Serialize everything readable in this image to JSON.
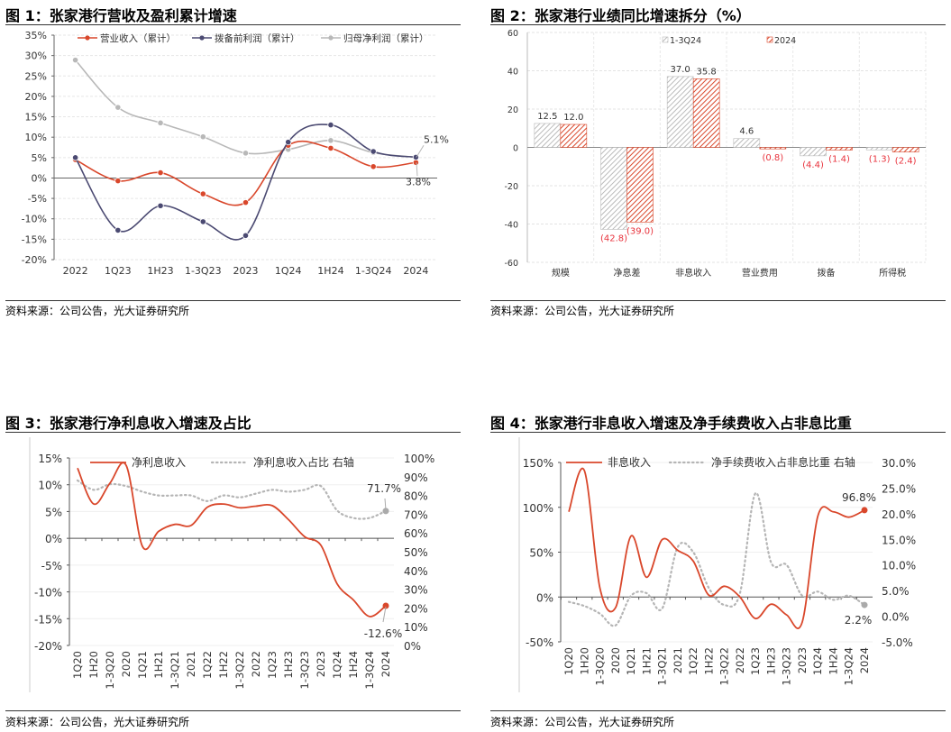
{
  "panels": [
    {
      "title": "图 1：张家港行营收及盈利累计增速",
      "source": "资料来源：公司公告，光大证券研究所"
    },
    {
      "title": "图 2：张家港行业绩同比增速拆分（%）",
      "source": "资料来源：公司公告，光大证券研究所"
    },
    {
      "title": "图 3：张家港行净利息收入增速及占比",
      "source": "资料来源：公司公告，光大证券研究所"
    },
    {
      "title": "图 4：张家港行非息收入增速及净手续费收入占非息比重",
      "source": "资料来源：公司公告，光大证券研究所"
    }
  ],
  "colors": {
    "red": "#d9472b",
    "navy": "#4b4a72",
    "gray": "#b8b8b8",
    "label_red": "#e8323c"
  },
  "chart_data": [
    {
      "type": "line",
      "title": "图 1：张家港行营收及盈利累计增速",
      "ylim": [
        -20,
        35
      ],
      "yticks": [
        "35%",
        "30%",
        "25%",
        "20%",
        "15%",
        "10%",
        "5%",
        "0%",
        "-5%",
        "-10%",
        "-15%",
        "-20%"
      ],
      "categories": [
        "2022",
        "1Q23",
        "1H23",
        "1-3Q23",
        "2023",
        "1Q24",
        "1H24",
        "1-3Q24",
        "2024"
      ],
      "series": [
        {
          "name": "营业收入（累计）",
          "values": [
            4.5,
            -0.7,
            1.3,
            -3.9,
            -6.0,
            8.0,
            7.3,
            2.8,
            3.8
          ]
        },
        {
          "name": "拨备前利润（累计）",
          "values": [
            5.0,
            -12.8,
            -6.8,
            -10.7,
            -14.1,
            8.8,
            13.0,
            6.5,
            5.1
          ]
        },
        {
          "name": "归母净利润（累计）",
          "values": [
            28.9,
            17.3,
            13.5,
            10.1,
            6.1,
            7.0,
            9.2,
            6.2,
            5.1
          ]
        }
      ],
      "annotations": [
        "5.1%",
        "3.8%"
      ],
      "legend": "top"
    },
    {
      "type": "bar",
      "title": "图 2：张家港行业绩同比增速拆分（%）",
      "ylim": [
        -60,
        60
      ],
      "yticks": [
        "60",
        "40",
        "20",
        "0",
        "-20",
        "-40",
        "-60"
      ],
      "categories": [
        "规模",
        "净息差",
        "非息收入",
        "营业费用",
        "拨备",
        "所得税"
      ],
      "series": [
        {
          "name": "1-3Q24",
          "values": [
            12.5,
            -42.8,
            37.0,
            4.6,
            -4.4,
            -1.3
          ],
          "labels": [
            "12.5",
            "(42.8)",
            "37.0",
            "4.6",
            "(4.4)",
            "(1.3)"
          ]
        },
        {
          "name": "2024",
          "values": [
            12.0,
            -39.0,
            35.8,
            -0.8,
            -1.4,
            -2.4
          ],
          "labels": [
            "12.0",
            "(39.0)",
            "35.8",
            "(0.8)",
            "(1.4)",
            "(2.4)"
          ]
        }
      ],
      "legend": "top"
    },
    {
      "type": "line",
      "title": "图 3：张家港行净利息收入增速及占比",
      "ylim": [
        -20,
        15
      ],
      "y2lim": [
        0,
        100
      ],
      "yticks": [
        "15%",
        "10%",
        "5%",
        "0%",
        "-5%",
        "-10%",
        "-15%",
        "-20%"
      ],
      "y2ticks": [
        "100%",
        "90%",
        "80%",
        "70%",
        "60%",
        "50%",
        "40%",
        "30%",
        "20%",
        "10%",
        "0%"
      ],
      "categories": [
        "1Q20",
        "1H20",
        "1-3Q20",
        "2020",
        "1Q21",
        "1H21",
        "1-3Q21",
        "2021",
        "1Q22",
        "1H22",
        "1-3Q22",
        "2022",
        "1Q23",
        "1H23",
        "1-3Q23",
        "2023",
        "1Q24",
        "1H24",
        "1-3Q24",
        "2024"
      ],
      "series": [
        {
          "name": "净利息收入",
          "axis": "left",
          "values": [
            13.1,
            6.4,
            10.3,
            13.6,
            -1.5,
            1.3,
            2.6,
            2.4,
            5.8,
            6.4,
            5.7,
            6.0,
            6.1,
            3.5,
            0.3,
            -1.3,
            -8.5,
            -11.5,
            -14.6,
            -12.6
          ]
        },
        {
          "name": "净利息收入占比 右轴",
          "axis": "right",
          "values": [
            88,
            83,
            86,
            85,
            82,
            80,
            80,
            80,
            77,
            80,
            79,
            81,
            83,
            82,
            83,
            85,
            72,
            68,
            68,
            71.7
          ]
        }
      ],
      "annotations": [
        "71.7%",
        "-12.6%"
      ],
      "legend": "top"
    },
    {
      "type": "line",
      "title": "图 4：张家港行非息收入增速及净手续费收入占非息比重",
      "ylim": [
        -50,
        150
      ],
      "y2lim": [
        -5,
        30
      ],
      "yticks": [
        "150%",
        "100%",
        "50%",
        "0%",
        "-50%"
      ],
      "y2ticks": [
        "30.0%",
        "25.0%",
        "20.0%",
        "15.0%",
        "10.0%",
        "5.0%",
        "0.0%",
        "-5.0%"
      ],
      "categories": [
        "1Q20",
        "1H20",
        "1-3Q20",
        "2020",
        "1Q21",
        "1H21",
        "1-3Q21",
        "2021",
        "1Q22",
        "1H22",
        "1-3Q22",
        "2022",
        "1Q23",
        "1H23",
        "1-3Q23",
        "2023",
        "1Q24",
        "1H24",
        "1-3Q24",
        "2024"
      ],
      "series": [
        {
          "name": "非息收入",
          "axis": "left",
          "values": [
            95,
            141,
            10,
            -12,
            68,
            22,
            64,
            52,
            40,
            2,
            12,
            0,
            -24,
            -8,
            -20,
            -28,
            90,
            95,
            89,
            96.8
          ]
        },
        {
          "name": "净手续费收入占非息比重 右轴",
          "axis": "right",
          "values": [
            2.8,
            2.0,
            0.5,
            -1.8,
            4.0,
            4.5,
            1.5,
            13.5,
            12.5,
            5.5,
            2.2,
            4.5,
            24.0,
            10.5,
            10.0,
            4.0,
            4.8,
            3.2,
            4.0,
            2.2
          ]
        }
      ],
      "annotations": [
        "96.8%",
        "2.2%"
      ],
      "legend": "top"
    }
  ]
}
